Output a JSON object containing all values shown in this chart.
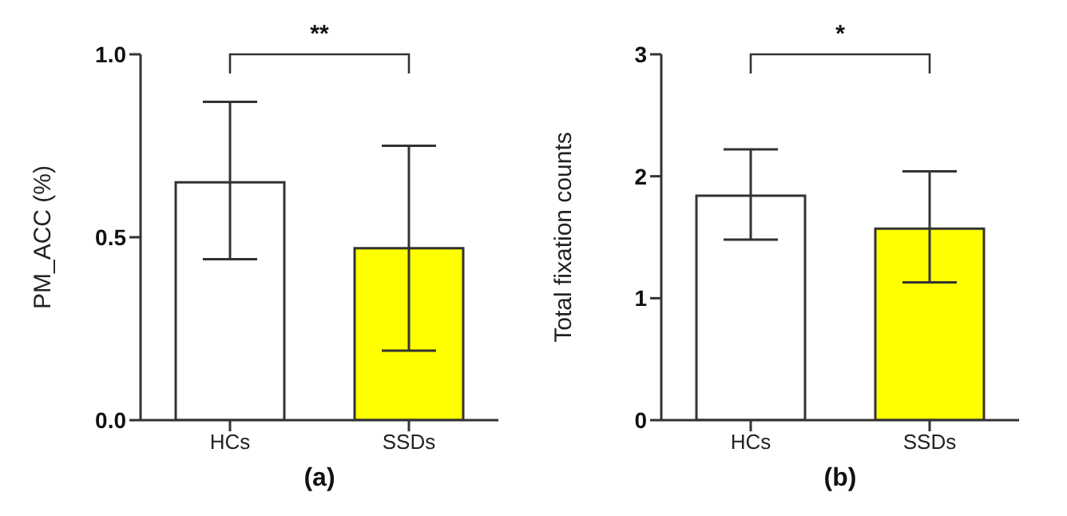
{
  "chart_data": [
    {
      "type": "bar",
      "title": "(a)",
      "ylabel": "PM_ACC (%)",
      "categories": [
        "HCs",
        "SSDs"
      ],
      "values": [
        0.65,
        0.47
      ],
      "colors": [
        "#ffffff",
        "#ffff00"
      ],
      "errors": [
        [
          0.44,
          0.87
        ],
        [
          0.19,
          0.75
        ]
      ],
      "ylim": [
        0,
        1
      ],
      "yticks": [
        {
          "value": 0,
          "label": "0.0"
        },
        {
          "value": 0.5,
          "label": "0.5"
        },
        {
          "value": 1,
          "label": "1.0"
        }
      ],
      "grid": false,
      "annotations": [
        "**"
      ]
    },
    {
      "type": "bar",
      "title": "(b)",
      "ylabel": "Total fixation counts",
      "categories": [
        "HCs",
        "SSDs"
      ],
      "values": [
        1.84,
        1.57
      ],
      "colors": [
        "#ffffff",
        "#ffff00"
      ],
      "errors": [
        [
          1.48,
          2.22
        ],
        [
          1.13,
          2.04
        ]
      ],
      "ylim": [
        0,
        3
      ],
      "yticks": [
        0,
        1,
        2,
        3
      ],
      "grid": false,
      "annotations": [
        "*"
      ]
    }
  ]
}
